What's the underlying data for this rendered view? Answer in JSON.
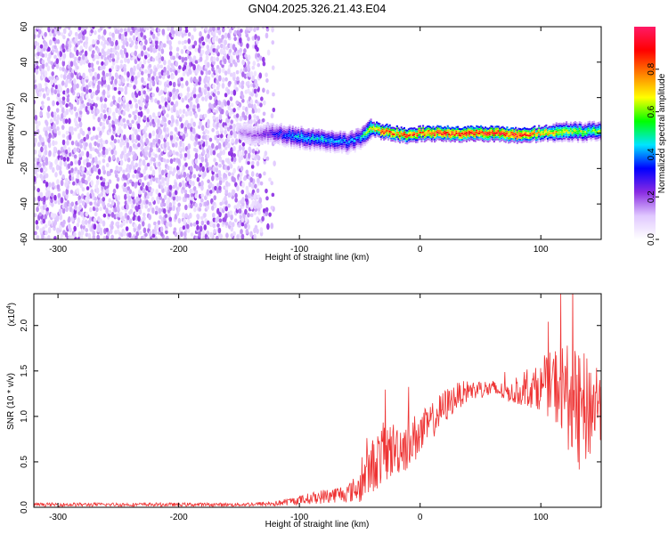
{
  "title": "GN04.2025.326.21.43.E04",
  "chart_data": [
    {
      "type": "heatmap",
      "title": "GN04.2025.326.21.43.E04",
      "xlabel": "Height of straight line (km)",
      "ylabel": "Frequency (Hz)",
      "xlim": [
        -320,
        150
      ],
      "ylim": [
        -60,
        60
      ],
      "xticks": [
        -300,
        -200,
        -100,
        0,
        100
      ],
      "yticks": [
        -60,
        -40,
        -20,
        0,
        20,
        40,
        60
      ],
      "noise_region_end_km": -125,
      "ridge": {
        "x": [
          -150,
          -135,
          -120,
          -100,
          -80,
          -60,
          -50,
          -40,
          -30,
          -20,
          -10,
          0,
          20,
          40,
          60,
          80,
          100,
          120,
          140,
          150
        ],
        "freq": [
          0,
          -1,
          0,
          -2,
          -4,
          -5,
          -3,
          3,
          1,
          0,
          -1,
          0,
          0,
          0,
          0,
          -1,
          0,
          1,
          1,
          1
        ],
        "amplitude": [
          0.15,
          0.2,
          0.3,
          0.45,
          0.45,
          0.4,
          0.4,
          0.7,
          0.9,
          0.85,
          0.9,
          0.85,
          0.95,
          0.95,
          0.95,
          0.95,
          0.8,
          0.7,
          0.6,
          0.6
        ]
      },
      "colorbar": {
        "label": "Normalized spectral amplitude",
        "range": [
          0.0,
          1.0
        ],
        "ticks": [
          "0.0",
          "0.2",
          "0.4",
          "0.6",
          "0.8"
        ],
        "colors": [
          "#ffffff",
          "#e0c8ff",
          "#8a2be2",
          "#0000ff",
          "#00e5ff",
          "#00ff00",
          "#ffff00",
          "#ff8000",
          "#ff0000",
          "#ff1a66"
        ]
      }
    },
    {
      "type": "line",
      "xlabel": "Height of straight line (km)",
      "ylabel": "SNR (10 * v/v)",
      "y_multiplier": "(x10",
      "y_multiplier_exp": "4",
      "xlim": [
        -320,
        150
      ],
      "ylim": [
        0,
        2.35
      ],
      "xticks": [
        -300,
        -200,
        -100,
        0,
        100
      ],
      "yticks": [
        "0.0",
        "0.5",
        "1.0",
        "1.5",
        "2.0"
      ],
      "color": "#ee3333",
      "series": [
        {
          "name": "SNR",
          "x": [
            -320,
            -250,
            -200,
            -150,
            -120,
            -100,
            -80,
            -60,
            -50,
            -40,
            -30,
            -20,
            -10,
            0,
            10,
            20,
            30,
            40,
            50,
            60,
            70,
            80,
            90,
            100,
            110,
            120,
            130,
            140,
            150
          ],
          "y": [
            0.03,
            0.03,
            0.03,
            0.03,
            0.04,
            0.08,
            0.12,
            0.16,
            0.22,
            0.45,
            0.6,
            0.65,
            0.7,
            0.8,
            0.95,
            1.1,
            1.22,
            1.28,
            1.3,
            1.3,
            1.27,
            1.25,
            1.3,
            1.32,
            1.35,
            1.3,
            1.0,
            1.1,
            1.2
          ],
          "spread": [
            0.02,
            0.02,
            0.02,
            0.02,
            0.03,
            0.05,
            0.08,
            0.1,
            0.18,
            0.3,
            0.35,
            0.3,
            0.3,
            0.25,
            0.2,
            0.2,
            0.15,
            0.12,
            0.1,
            0.1,
            0.1,
            0.12,
            0.2,
            0.25,
            0.4,
            0.55,
            0.7,
            0.6,
            0.45
          ]
        }
      ]
    }
  ]
}
